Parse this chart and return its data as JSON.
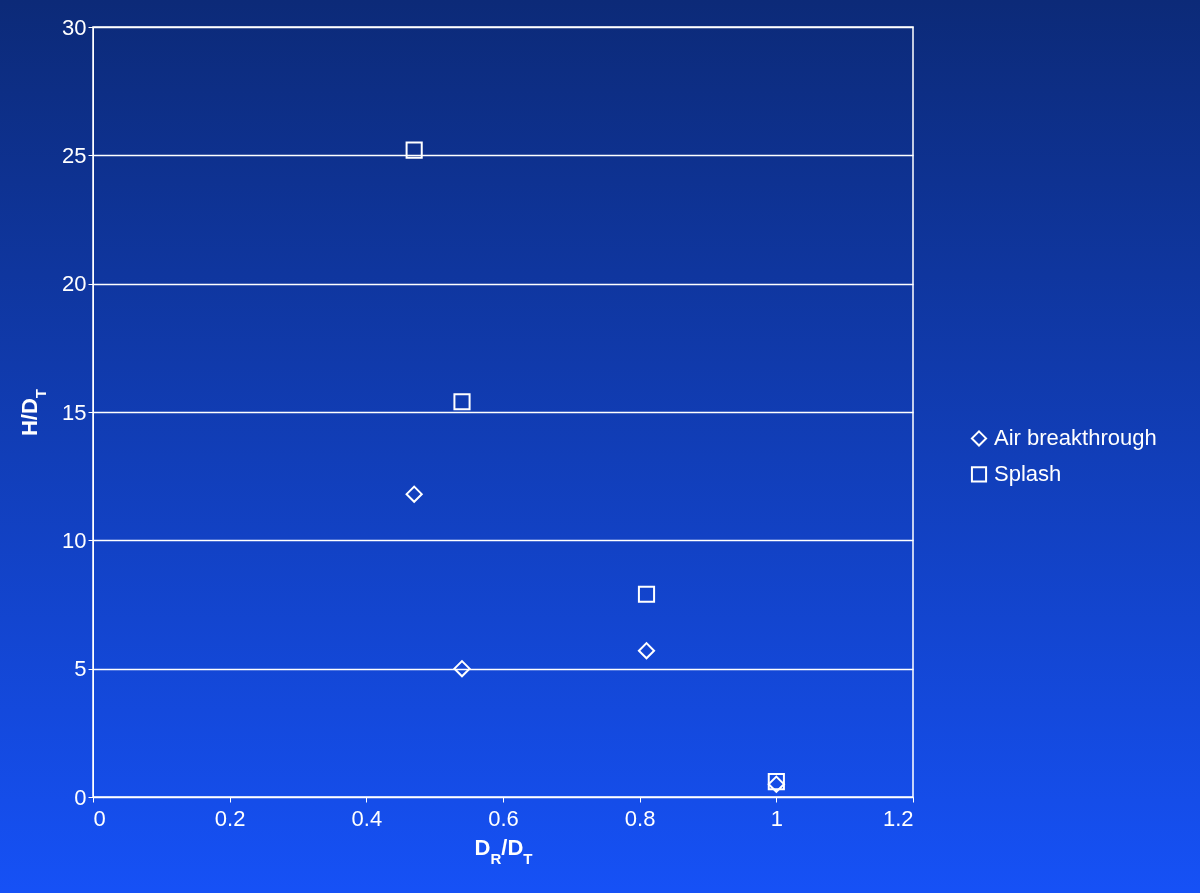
{
  "chart_data": {
    "type": "scatter",
    "xlabel": "D$_{R}$/D$_{T}$",
    "ylabel": "H/D$_{T}$",
    "x": [
      0.47,
      0.54,
      0.81,
      1.0
    ],
    "series": [
      {
        "name": "Air breakthrough",
        "color": "#ffffff",
        "marker": "diamond",
        "values": [
          11.8,
          5.0,
          5.7,
          0.5
        ]
      },
      {
        "name": "Splash",
        "color": "#ffffff",
        "marker": "square",
        "values": [
          25.2,
          15.4,
          7.9,
          0.6
        ]
      }
    ],
    "xlim": [
      0,
      1.2
    ],
    "xticks": [
      0,
      0.2,
      0.4,
      0.6,
      0.8,
      1,
      1.2
    ],
    "ylim": [
      0,
      30
    ],
    "yticks": [
      0,
      5,
      10,
      15,
      20,
      25,
      30
    ],
    "grid": "y",
    "legend": "right"
  }
}
